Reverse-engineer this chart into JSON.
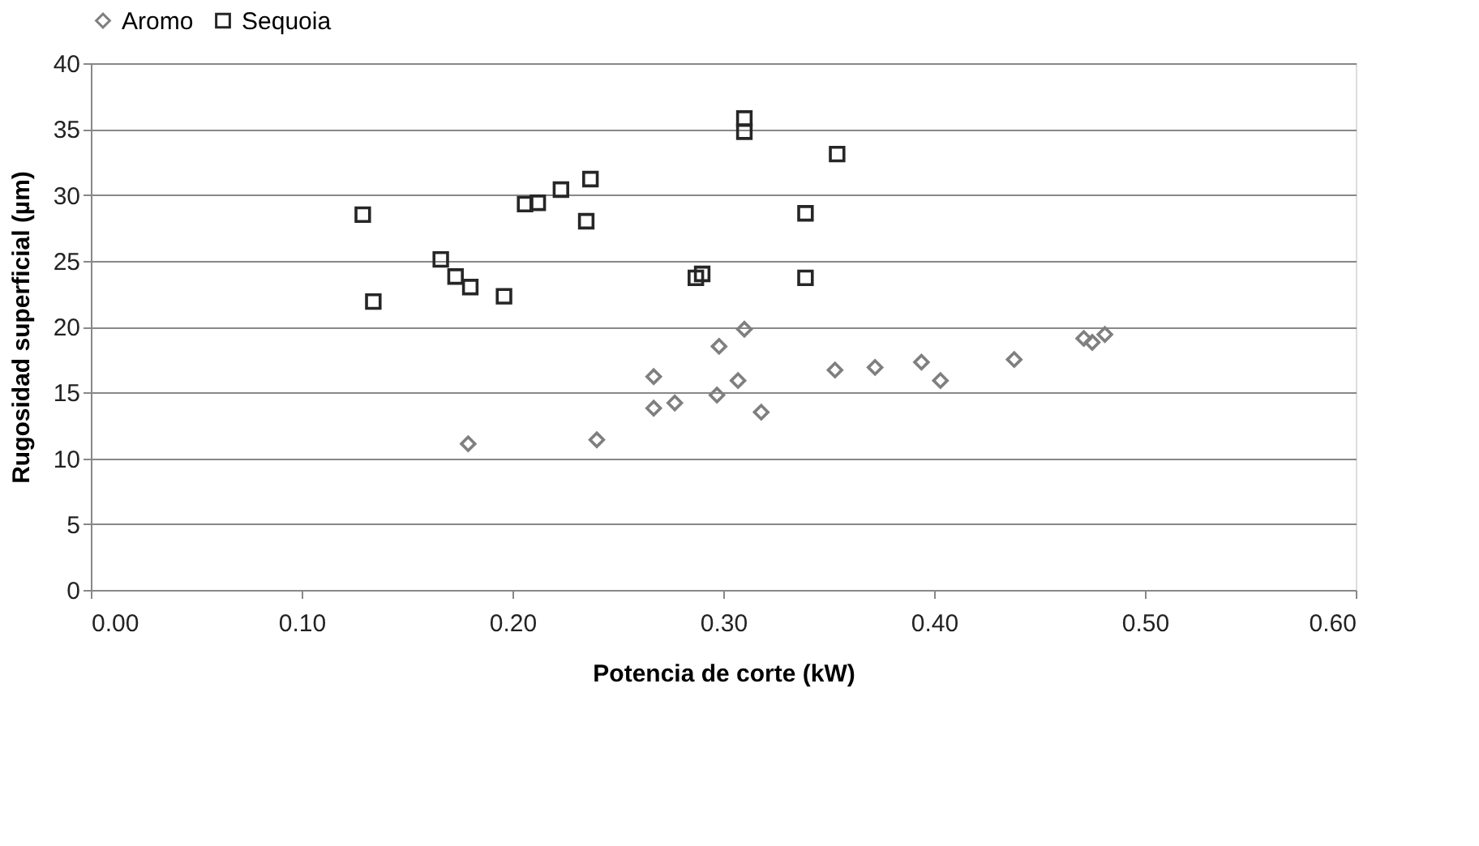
{
  "chart_data": {
    "type": "scatter",
    "xlabel": "Potencia de corte (kW)",
    "ylabel": "Rugosidad  superficial (µm)",
    "xlim": [
      0,
      0.6
    ],
    "xticks": [
      {
        "value": 0,
        "label": "0.00"
      },
      {
        "value": 0.1,
        "label": "0.10"
      },
      {
        "value": 0.2,
        "label": "0.20"
      },
      {
        "value": 0.3,
        "label": "0.30"
      },
      {
        "value": 0.4,
        "label": "0.40"
      },
      {
        "value": 0.5,
        "label": "0.50"
      },
      {
        "value": 0.6,
        "label": "0.60"
      }
    ],
    "ylim": [
      0,
      40
    ],
    "yticks": [
      0,
      5,
      10,
      15,
      20,
      25,
      30,
      35,
      40
    ],
    "grid": "y",
    "legend": "top",
    "series": [
      {
        "name": "Aromo",
        "color": "#7f7f7f",
        "marker": "diamond",
        "x": [
          0.179,
          0.24,
          0.267,
          0.267,
          0.277,
          0.298,
          0.297,
          0.307,
          0.31,
          0.318,
          0.353,
          0.372,
          0.394,
          0.403,
          0.438,
          0.471,
          0.475,
          0.481
        ],
        "values": [
          11.1,
          11.4,
          16.2,
          13.8,
          14.2,
          18.5,
          14.8,
          15.9,
          19.8,
          13.5,
          16.7,
          16.9,
          17.3,
          15.9,
          17.5,
          19.1,
          18.8,
          19.4
        ]
      },
      {
        "name": "Sequoia",
        "color": "#262626",
        "marker": "square",
        "x": [
          0.129,
          0.134,
          0.166,
          0.173,
          0.18,
          0.196,
          0.206,
          0.212,
          0.223,
          0.237,
          0.235,
          0.287,
          0.29,
          0.31,
          0.31,
          0.339,
          0.339,
          0.354
        ],
        "values": [
          28.5,
          21.9,
          25.1,
          23.8,
          23.0,
          22.3,
          29.3,
          29.4,
          30.4,
          31.2,
          28.0,
          23.7,
          24.0,
          35.8,
          34.8,
          28.6,
          23.7,
          33.1
        ]
      }
    ]
  }
}
